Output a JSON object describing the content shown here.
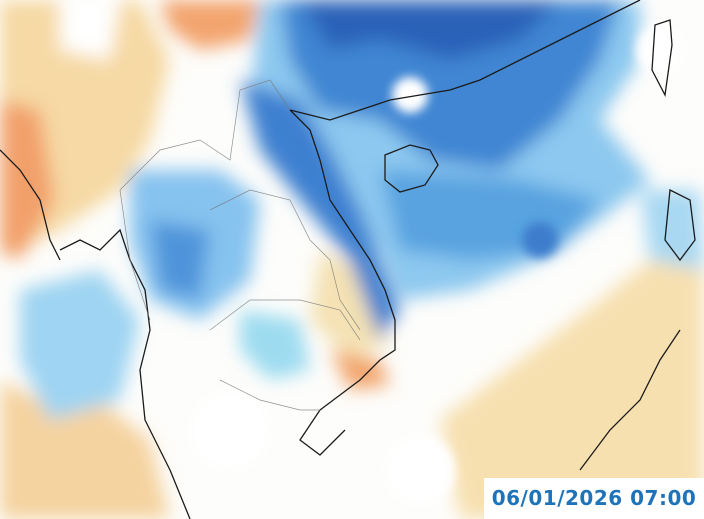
{
  "timestamp": "06/01/2026 07:00"
}
